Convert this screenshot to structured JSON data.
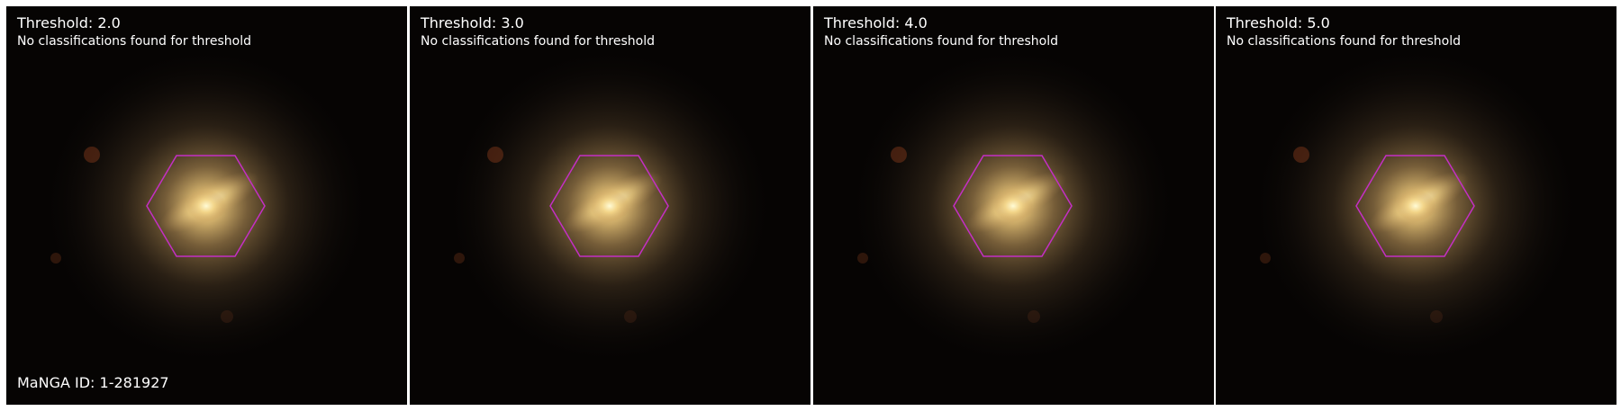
{
  "figure": {
    "manga_id_label": "MaNGA ID: 1-281927",
    "hexagon_color": "#c42fc4",
    "panels": [
      {
        "threshold_label": "Threshold: 2.0",
        "status": "No classifications found for threshold"
      },
      {
        "threshold_label": "Threshold: 3.0",
        "status": "No classifications found for threshold"
      },
      {
        "threshold_label": "Threshold: 4.0",
        "status": "No classifications found for threshold"
      },
      {
        "threshold_label": "Threshold: 5.0",
        "status": "No classifications found for threshold"
      }
    ]
  }
}
